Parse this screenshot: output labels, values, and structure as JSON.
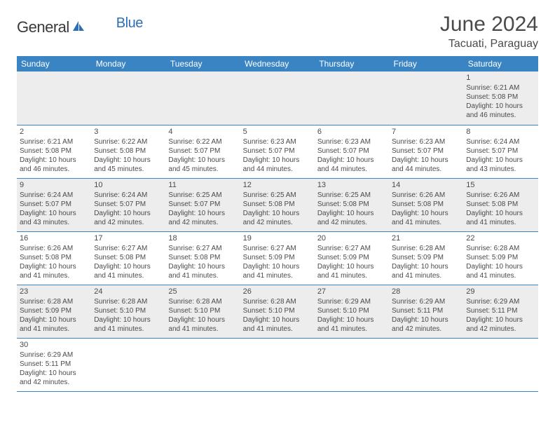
{
  "logo": {
    "text1": "General",
    "text2": "Blue"
  },
  "title": "June 2024",
  "location": "Tacuati, Paraguay",
  "colors": {
    "header_bg": "#3b84c4",
    "header_text": "#ffffff",
    "row_alt": "#ededed",
    "text": "#4a4a4a",
    "logo_blue": "#2d6fb5",
    "divider": "#3b84c4"
  },
  "day_headers": [
    "Sunday",
    "Monday",
    "Tuesday",
    "Wednesday",
    "Thursday",
    "Friday",
    "Saturday"
  ],
  "weeks": [
    [
      null,
      null,
      null,
      null,
      null,
      null,
      {
        "n": "1",
        "sr": "6:21 AM",
        "ss": "5:08 PM",
        "dl": "10 hours and 46 minutes."
      }
    ],
    [
      {
        "n": "2",
        "sr": "6:21 AM",
        "ss": "5:08 PM",
        "dl": "10 hours and 46 minutes."
      },
      {
        "n": "3",
        "sr": "6:22 AM",
        "ss": "5:08 PM",
        "dl": "10 hours and 45 minutes."
      },
      {
        "n": "4",
        "sr": "6:22 AM",
        "ss": "5:07 PM",
        "dl": "10 hours and 45 minutes."
      },
      {
        "n": "5",
        "sr": "6:23 AM",
        "ss": "5:07 PM",
        "dl": "10 hours and 44 minutes."
      },
      {
        "n": "6",
        "sr": "6:23 AM",
        "ss": "5:07 PM",
        "dl": "10 hours and 44 minutes."
      },
      {
        "n": "7",
        "sr": "6:23 AM",
        "ss": "5:07 PM",
        "dl": "10 hours and 44 minutes."
      },
      {
        "n": "8",
        "sr": "6:24 AM",
        "ss": "5:07 PM",
        "dl": "10 hours and 43 minutes."
      }
    ],
    [
      {
        "n": "9",
        "sr": "6:24 AM",
        "ss": "5:07 PM",
        "dl": "10 hours and 43 minutes."
      },
      {
        "n": "10",
        "sr": "6:24 AM",
        "ss": "5:07 PM",
        "dl": "10 hours and 42 minutes."
      },
      {
        "n": "11",
        "sr": "6:25 AM",
        "ss": "5:07 PM",
        "dl": "10 hours and 42 minutes."
      },
      {
        "n": "12",
        "sr": "6:25 AM",
        "ss": "5:08 PM",
        "dl": "10 hours and 42 minutes."
      },
      {
        "n": "13",
        "sr": "6:25 AM",
        "ss": "5:08 PM",
        "dl": "10 hours and 42 minutes."
      },
      {
        "n": "14",
        "sr": "6:26 AM",
        "ss": "5:08 PM",
        "dl": "10 hours and 41 minutes."
      },
      {
        "n": "15",
        "sr": "6:26 AM",
        "ss": "5:08 PM",
        "dl": "10 hours and 41 minutes."
      }
    ],
    [
      {
        "n": "16",
        "sr": "6:26 AM",
        "ss": "5:08 PM",
        "dl": "10 hours and 41 minutes."
      },
      {
        "n": "17",
        "sr": "6:27 AM",
        "ss": "5:08 PM",
        "dl": "10 hours and 41 minutes."
      },
      {
        "n": "18",
        "sr": "6:27 AM",
        "ss": "5:08 PM",
        "dl": "10 hours and 41 minutes."
      },
      {
        "n": "19",
        "sr": "6:27 AM",
        "ss": "5:09 PM",
        "dl": "10 hours and 41 minutes."
      },
      {
        "n": "20",
        "sr": "6:27 AM",
        "ss": "5:09 PM",
        "dl": "10 hours and 41 minutes."
      },
      {
        "n": "21",
        "sr": "6:28 AM",
        "ss": "5:09 PM",
        "dl": "10 hours and 41 minutes."
      },
      {
        "n": "22",
        "sr": "6:28 AM",
        "ss": "5:09 PM",
        "dl": "10 hours and 41 minutes."
      }
    ],
    [
      {
        "n": "23",
        "sr": "6:28 AM",
        "ss": "5:09 PM",
        "dl": "10 hours and 41 minutes."
      },
      {
        "n": "24",
        "sr": "6:28 AM",
        "ss": "5:10 PM",
        "dl": "10 hours and 41 minutes."
      },
      {
        "n": "25",
        "sr": "6:28 AM",
        "ss": "5:10 PM",
        "dl": "10 hours and 41 minutes."
      },
      {
        "n": "26",
        "sr": "6:28 AM",
        "ss": "5:10 PM",
        "dl": "10 hours and 41 minutes."
      },
      {
        "n": "27",
        "sr": "6:29 AM",
        "ss": "5:10 PM",
        "dl": "10 hours and 41 minutes."
      },
      {
        "n": "28",
        "sr": "6:29 AM",
        "ss": "5:11 PM",
        "dl": "10 hours and 42 minutes."
      },
      {
        "n": "29",
        "sr": "6:29 AM",
        "ss": "5:11 PM",
        "dl": "10 hours and 42 minutes."
      }
    ],
    [
      {
        "n": "30",
        "sr": "6:29 AM",
        "ss": "5:11 PM",
        "dl": "10 hours and 42 minutes."
      },
      null,
      null,
      null,
      null,
      null,
      null
    ]
  ],
  "labels": {
    "sunrise": "Sunrise:",
    "sunset": "Sunset:",
    "daylight": "Daylight:"
  }
}
